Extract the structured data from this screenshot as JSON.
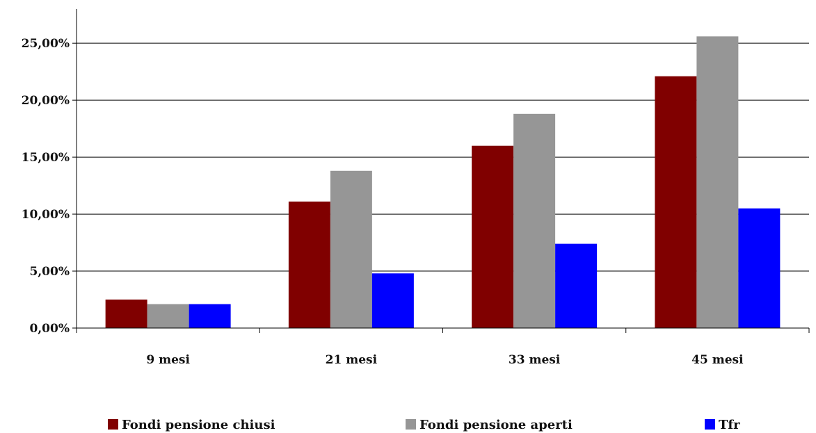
{
  "chart_data": {
    "type": "bar",
    "title": "",
    "xlabel": "",
    "ylabel": "",
    "categories": [
      "9 mesi",
      "21 mesi",
      "33 mesi",
      "45 mesi"
    ],
    "series": [
      {
        "name": "Fondi pensione chiusi",
        "color": "#800000",
        "values": [
          2.5,
          11.1,
          16.0,
          22.1
        ]
      },
      {
        "name": "Fondi pensione aperti",
        "color": "#969696",
        "values": [
          2.1,
          13.8,
          18.8,
          25.6
        ]
      },
      {
        "name": "Tfr",
        "color": "#0000ff",
        "values": [
          2.1,
          4.8,
          7.4,
          10.5
        ]
      }
    ],
    "ylim": [
      0,
      28
    ],
    "yticks": [
      0,
      5,
      10,
      15,
      20,
      25
    ],
    "ytick_labels": [
      "0,00%",
      "5,00%",
      "10,00%",
      "15,00%",
      "20,00%",
      "25,00%"
    ],
    "grid": true,
    "legend_position": "bottom"
  }
}
